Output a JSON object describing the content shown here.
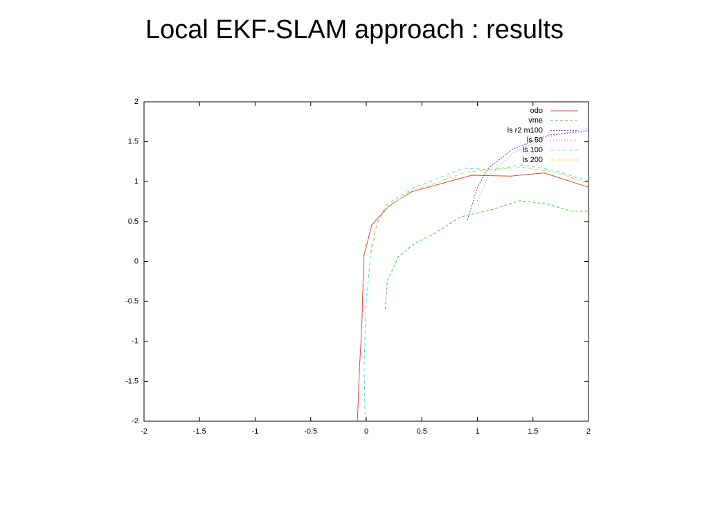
{
  "chart_data": {
    "type": "line",
    "title": "Local EKF-SLAM approach : results",
    "xlim": [
      -2,
      2
    ],
    "ylim": [
      -2,
      2
    ],
    "xticks": [
      -2,
      -1.5,
      -1,
      -0.5,
      0,
      0.5,
      1,
      1.5,
      2
    ],
    "yticks": [
      -2,
      -1.5,
      -1,
      -0.5,
      0,
      0.5,
      1,
      1.5,
      2
    ],
    "legend": "top-right",
    "series": [
      {
        "name": "odo",
        "color": "#e8413a",
        "x": [
          -0.08,
          -0.06,
          -0.04,
          -0.03,
          -0.02,
          0.05,
          0.2,
          0.4,
          0.95,
          1.3,
          1.6,
          2
        ],
        "values": [
          -2,
          -1.3,
          -0.8,
          -0.3,
          0.08,
          0.46,
          0.69,
          0.87,
          1.08,
          1.07,
          1.11,
          0.93
        ]
      },
      {
        "name": "vme",
        "color": "#33cc33",
        "x": [
          0.17,
          0.19,
          0.29,
          0.43,
          0.6,
          0.85,
          1.13,
          1.38,
          1.63,
          1.85,
          2
        ],
        "values": [
          -0.6,
          -0.24,
          0.06,
          0.22,
          0.34,
          0.56,
          0.65,
          0.76,
          0.72,
          0.63,
          0.63
        ]
      },
      {
        "name": "ls r2 m100",
        "color": "#3344cc",
        "x": [
          0.91,
          1.0,
          1.1,
          1.32,
          1.63,
          2
        ],
        "values": [
          0.52,
          0.93,
          1.17,
          1.41,
          1.58,
          1.64
        ]
      },
      {
        "name": "ls 50",
        "color": "#ee44ee",
        "x": [
          1.0,
          1.1,
          1.32,
          1.63,
          2
        ],
        "values": [
          0.76,
          1.06,
          1.36,
          1.56,
          1.67
        ]
      },
      {
        "name": "ls 100",
        "color": "#44dddd",
        "x": [
          -0.01,
          -0.02,
          0.0,
          0.04,
          0.1,
          0.19,
          0.44,
          0.88,
          1.13,
          1.41,
          1.69,
          2
        ],
        "values": [
          -2,
          -1.3,
          -0.5,
          0.08,
          0.5,
          0.72,
          0.93,
          1.17,
          1.15,
          1.21,
          1.14,
          1.01
        ]
      },
      {
        "name": "ls 200",
        "color": "#dddd44",
        "x": [
          0.03,
          0.1,
          0.2,
          0.45,
          0.9,
          1.4,
          1.7,
          2
        ],
        "values": [
          0.1,
          0.48,
          0.7,
          0.9,
          1.12,
          1.18,
          1.12,
          0.98
        ]
      }
    ]
  }
}
